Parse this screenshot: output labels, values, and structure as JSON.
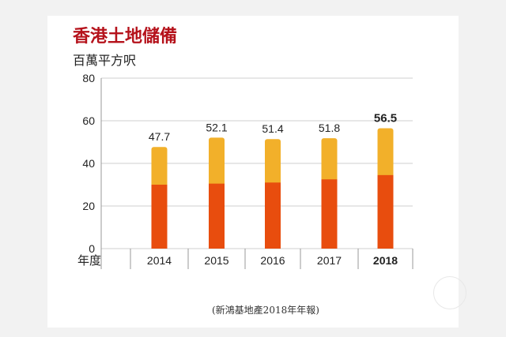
{
  "title": "香港土地儲備",
  "unit_label": "百萬平方呎",
  "source": "(新鴻基地產2018年年報)",
  "colors": {
    "lower": "#e84d0e",
    "upper": "#f2b02a",
    "title": "#b5121b"
  },
  "chart_data": {
    "type": "bar",
    "title": "香港土地儲備",
    "ylabel": "百萬平方呎",
    "xlabel": "年度",
    "ylim": [
      0,
      80
    ],
    "yticks": [
      0,
      20,
      40,
      60,
      80
    ],
    "categories": [
      "2014",
      "2015",
      "2016",
      "2017",
      "2018"
    ],
    "highlight": "2018",
    "series": [
      {
        "values": [
          30,
          30.5,
          31,
          32.5,
          34.5
        ]
      },
      {
        "values": [
          17.7,
          21.6,
          20.4,
          19.3,
          22
        ]
      }
    ],
    "totals": [
      47.7,
      52.1,
      51.4,
      51.8,
      56.5
    ],
    "total_labels": [
      "47.7",
      "52.1",
      "51.4",
      "51.8",
      "56.5"
    ]
  }
}
